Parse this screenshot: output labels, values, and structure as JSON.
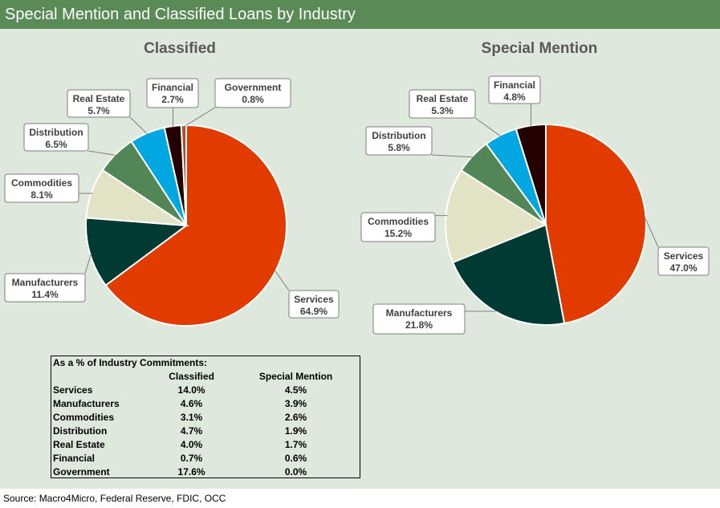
{
  "header": {
    "title": "Special Mention and Classified Loans by Industry"
  },
  "chart_data": [
    {
      "type": "pie",
      "title": "Classified",
      "labels": [
        "Services",
        "Manufacturers",
        "Commodities",
        "Distribution",
        "Real Estate",
        "Financial",
        "Government"
      ],
      "values": [
        64.9,
        11.4,
        8.1,
        6.5,
        5.7,
        2.7,
        0.8
      ],
      "value_labels": [
        "64.9%",
        "11.4%",
        "8.1%",
        "6.5%",
        "5.7%",
        "2.7%",
        "0.8%"
      ],
      "colors": [
        "#e13b00",
        "#003a33",
        "#e2e3c5",
        "#528656",
        "#00a7e1",
        "#240000",
        "#b44a2b"
      ]
    },
    {
      "type": "pie",
      "title": "Special Mention",
      "labels": [
        "Services",
        "Manufacturers",
        "Commodities",
        "Distribution",
        "Real Estate",
        "Financial"
      ],
      "values": [
        47.0,
        21.8,
        15.2,
        5.8,
        5.3,
        4.8
      ],
      "value_labels": [
        "47.0%",
        "21.8%",
        "15.2%",
        "5.8%",
        "5.3%",
        "4.8%"
      ],
      "colors": [
        "#e13b00",
        "#003a33",
        "#e2e3c5",
        "#528656",
        "#00a7e1",
        "#240000"
      ]
    }
  ],
  "table": {
    "heading": "As a % of Industry Commitments:",
    "columns": [
      "Classified",
      "Special Mention"
    ],
    "rows": [
      {
        "name": "Services",
        "classified": "14.0%",
        "special": "4.5%"
      },
      {
        "name": "Manufacturers",
        "classified": "4.6%",
        "special": "3.9%"
      },
      {
        "name": "Commodities",
        "classified": "3.1%",
        "special": "2.6%"
      },
      {
        "name": "Distribution",
        "classified": "4.7%",
        "special": "1.9%"
      },
      {
        "name": "Real Estate",
        "classified": "4.0%",
        "special": "1.7%"
      },
      {
        "name": "Financial",
        "classified": "0.7%",
        "special": "0.6%"
      },
      {
        "name": "Government",
        "classified": "17.6%",
        "special": "0.0%"
      }
    ]
  },
  "source": "Source: Macro4Micro, Federal Reserve, FDIC, OCC"
}
